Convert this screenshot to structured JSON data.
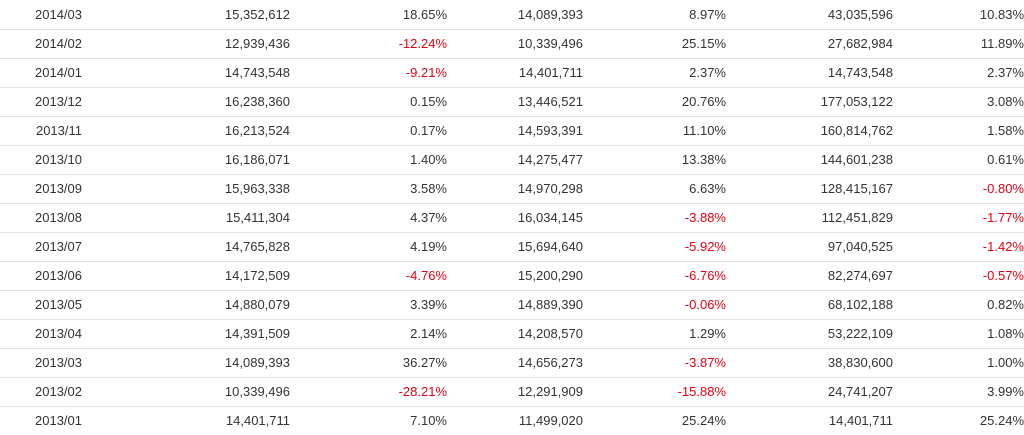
{
  "rows": [
    {
      "period": "2014/03",
      "v1": "15,352,612",
      "p1": "18.65%",
      "v2": "14,089,393",
      "p2": "8.97%",
      "v3": "43,035,596",
      "p3": "10.83%"
    },
    {
      "period": "2014/02",
      "v1": "12,939,436",
      "p1": "-12.24%",
      "v2": "10,339,496",
      "p2": "25.15%",
      "v3": "27,682,984",
      "p3": "11.89%"
    },
    {
      "period": "2014/01",
      "v1": "14,743,548",
      "p1": "-9.21%",
      "v2": "14,401,711",
      "p2": "2.37%",
      "v3": "14,743,548",
      "p3": "2.37%"
    },
    {
      "period": "2013/12",
      "v1": "16,238,360",
      "p1": "0.15%",
      "v2": "13,446,521",
      "p2": "20.76%",
      "v3": "177,053,122",
      "p3": "3.08%"
    },
    {
      "period": "2013/11",
      "v1": "16,213,524",
      "p1": "0.17%",
      "v2": "14,593,391",
      "p2": "11.10%",
      "v3": "160,814,762",
      "p3": "1.58%"
    },
    {
      "period": "2013/10",
      "v1": "16,186,071",
      "p1": "1.40%",
      "v2": "14,275,477",
      "p2": "13.38%",
      "v3": "144,601,238",
      "p3": "0.61%"
    },
    {
      "period": "2013/09",
      "v1": "15,963,338",
      "p1": "3.58%",
      "v2": "14,970,298",
      "p2": "6.63%",
      "v3": "128,415,167",
      "p3": "-0.80%"
    },
    {
      "period": "2013/08",
      "v1": "15,411,304",
      "p1": "4.37%",
      "v2": "16,034,145",
      "p2": "-3.88%",
      "v3": "112,451,829",
      "p3": "-1.77%"
    },
    {
      "period": "2013/07",
      "v1": "14,765,828",
      "p1": "4.19%",
      "v2": "15,694,640",
      "p2": "-5.92%",
      "v3": "97,040,525",
      "p3": "-1.42%"
    },
    {
      "period": "2013/06",
      "v1": "14,172,509",
      "p1": "-4.76%",
      "v2": "15,200,290",
      "p2": "-6.76%",
      "v3": "82,274,697",
      "p3": "-0.57%"
    },
    {
      "period": "2013/05",
      "v1": "14,880,079",
      "p1": "3.39%",
      "v2": "14,889,390",
      "p2": "-0.06%",
      "v3": "68,102,188",
      "p3": "0.82%"
    },
    {
      "period": "2013/04",
      "v1": "14,391,509",
      "p1": "2.14%",
      "v2": "14,208,570",
      "p2": "1.29%",
      "v3": "53,222,109",
      "p3": "1.08%"
    },
    {
      "period": "2013/03",
      "v1": "14,089,393",
      "p1": "36.27%",
      "v2": "14,656,273",
      "p2": "-3.87%",
      "v3": "38,830,600",
      "p3": "1.00%"
    },
    {
      "period": "2013/02",
      "v1": "10,339,496",
      "p1": "-28.21%",
      "v2": "12,291,909",
      "p2": "-15.88%",
      "v3": "24,741,207",
      "p3": "3.99%"
    },
    {
      "period": "2013/01",
      "v1": "14,401,711",
      "p1": "7.10%",
      "v2": "11,499,020",
      "p2": "25.24%",
      "v3": "14,401,711",
      "p3": "25.24%"
    }
  ],
  "colors": {
    "negative": "#e60012",
    "text": "#333333",
    "rule": "#e3e3e3"
  }
}
